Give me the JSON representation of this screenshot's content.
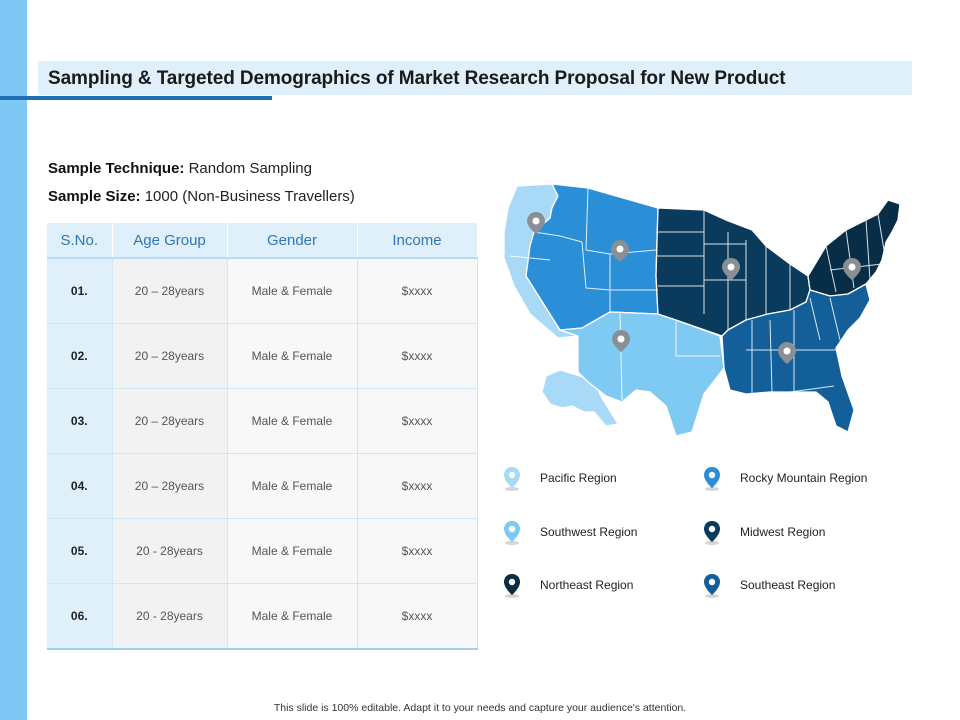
{
  "title": "Sampling & Targeted Demographics of Market Research Proposal for New Product",
  "sample_technique": {
    "label": "Sample Technique:",
    "value": "Random Sampling"
  },
  "sample_size": {
    "label": "Sample Size:",
    "value": "1000 (Non-Business Travellers)"
  },
  "table": {
    "headers": [
      "S.No.",
      "Age Group",
      "Gender",
      "Income"
    ],
    "rows": [
      [
        "01.",
        "20 – 28years",
        "Male & Female",
        "$xxxx"
      ],
      [
        "02.",
        "20 – 28years",
        "Male & Female",
        "$xxxx"
      ],
      [
        "03.",
        "20 – 28years",
        "Male & Female",
        "$xxxx"
      ],
      [
        "04.",
        "20 – 28years",
        "Male & Female",
        "$xxxx"
      ],
      [
        "05.",
        "20 - 28years",
        "Male & Female",
        "$xxxx"
      ],
      [
        "06.",
        "20 - 28years",
        "Male & Female",
        "$xxxx"
      ]
    ]
  },
  "legend": [
    {
      "label": "Pacific Region",
      "color": "#a8daf7",
      "icon": "map-pin-icon"
    },
    {
      "label": "Rocky Mountain Region",
      "color": "#2a8fd6",
      "icon": "map-pin-icon"
    },
    {
      "label": "Southwest Region",
      "color": "#7fcaf3",
      "icon": "map-pin-icon"
    },
    {
      "label": "Midwest Region",
      "color": "#0b3b5c",
      "icon": "map-pin-icon"
    },
    {
      "label": "Northeast Region",
      "color": "#082d47",
      "icon": "map-pin-icon"
    },
    {
      "label": "Southeast Region",
      "color": "#125f9a",
      "icon": "map-pin-icon"
    }
  ],
  "footer": "This slide is 100% editable. Adapt it to your needs and capture your audience's attention.",
  "colors": {
    "accent": "#1f6fb0",
    "strip": "#7fc7f5",
    "header_bg": "#dff0fb",
    "pin_marker": "#8a8f95"
  }
}
